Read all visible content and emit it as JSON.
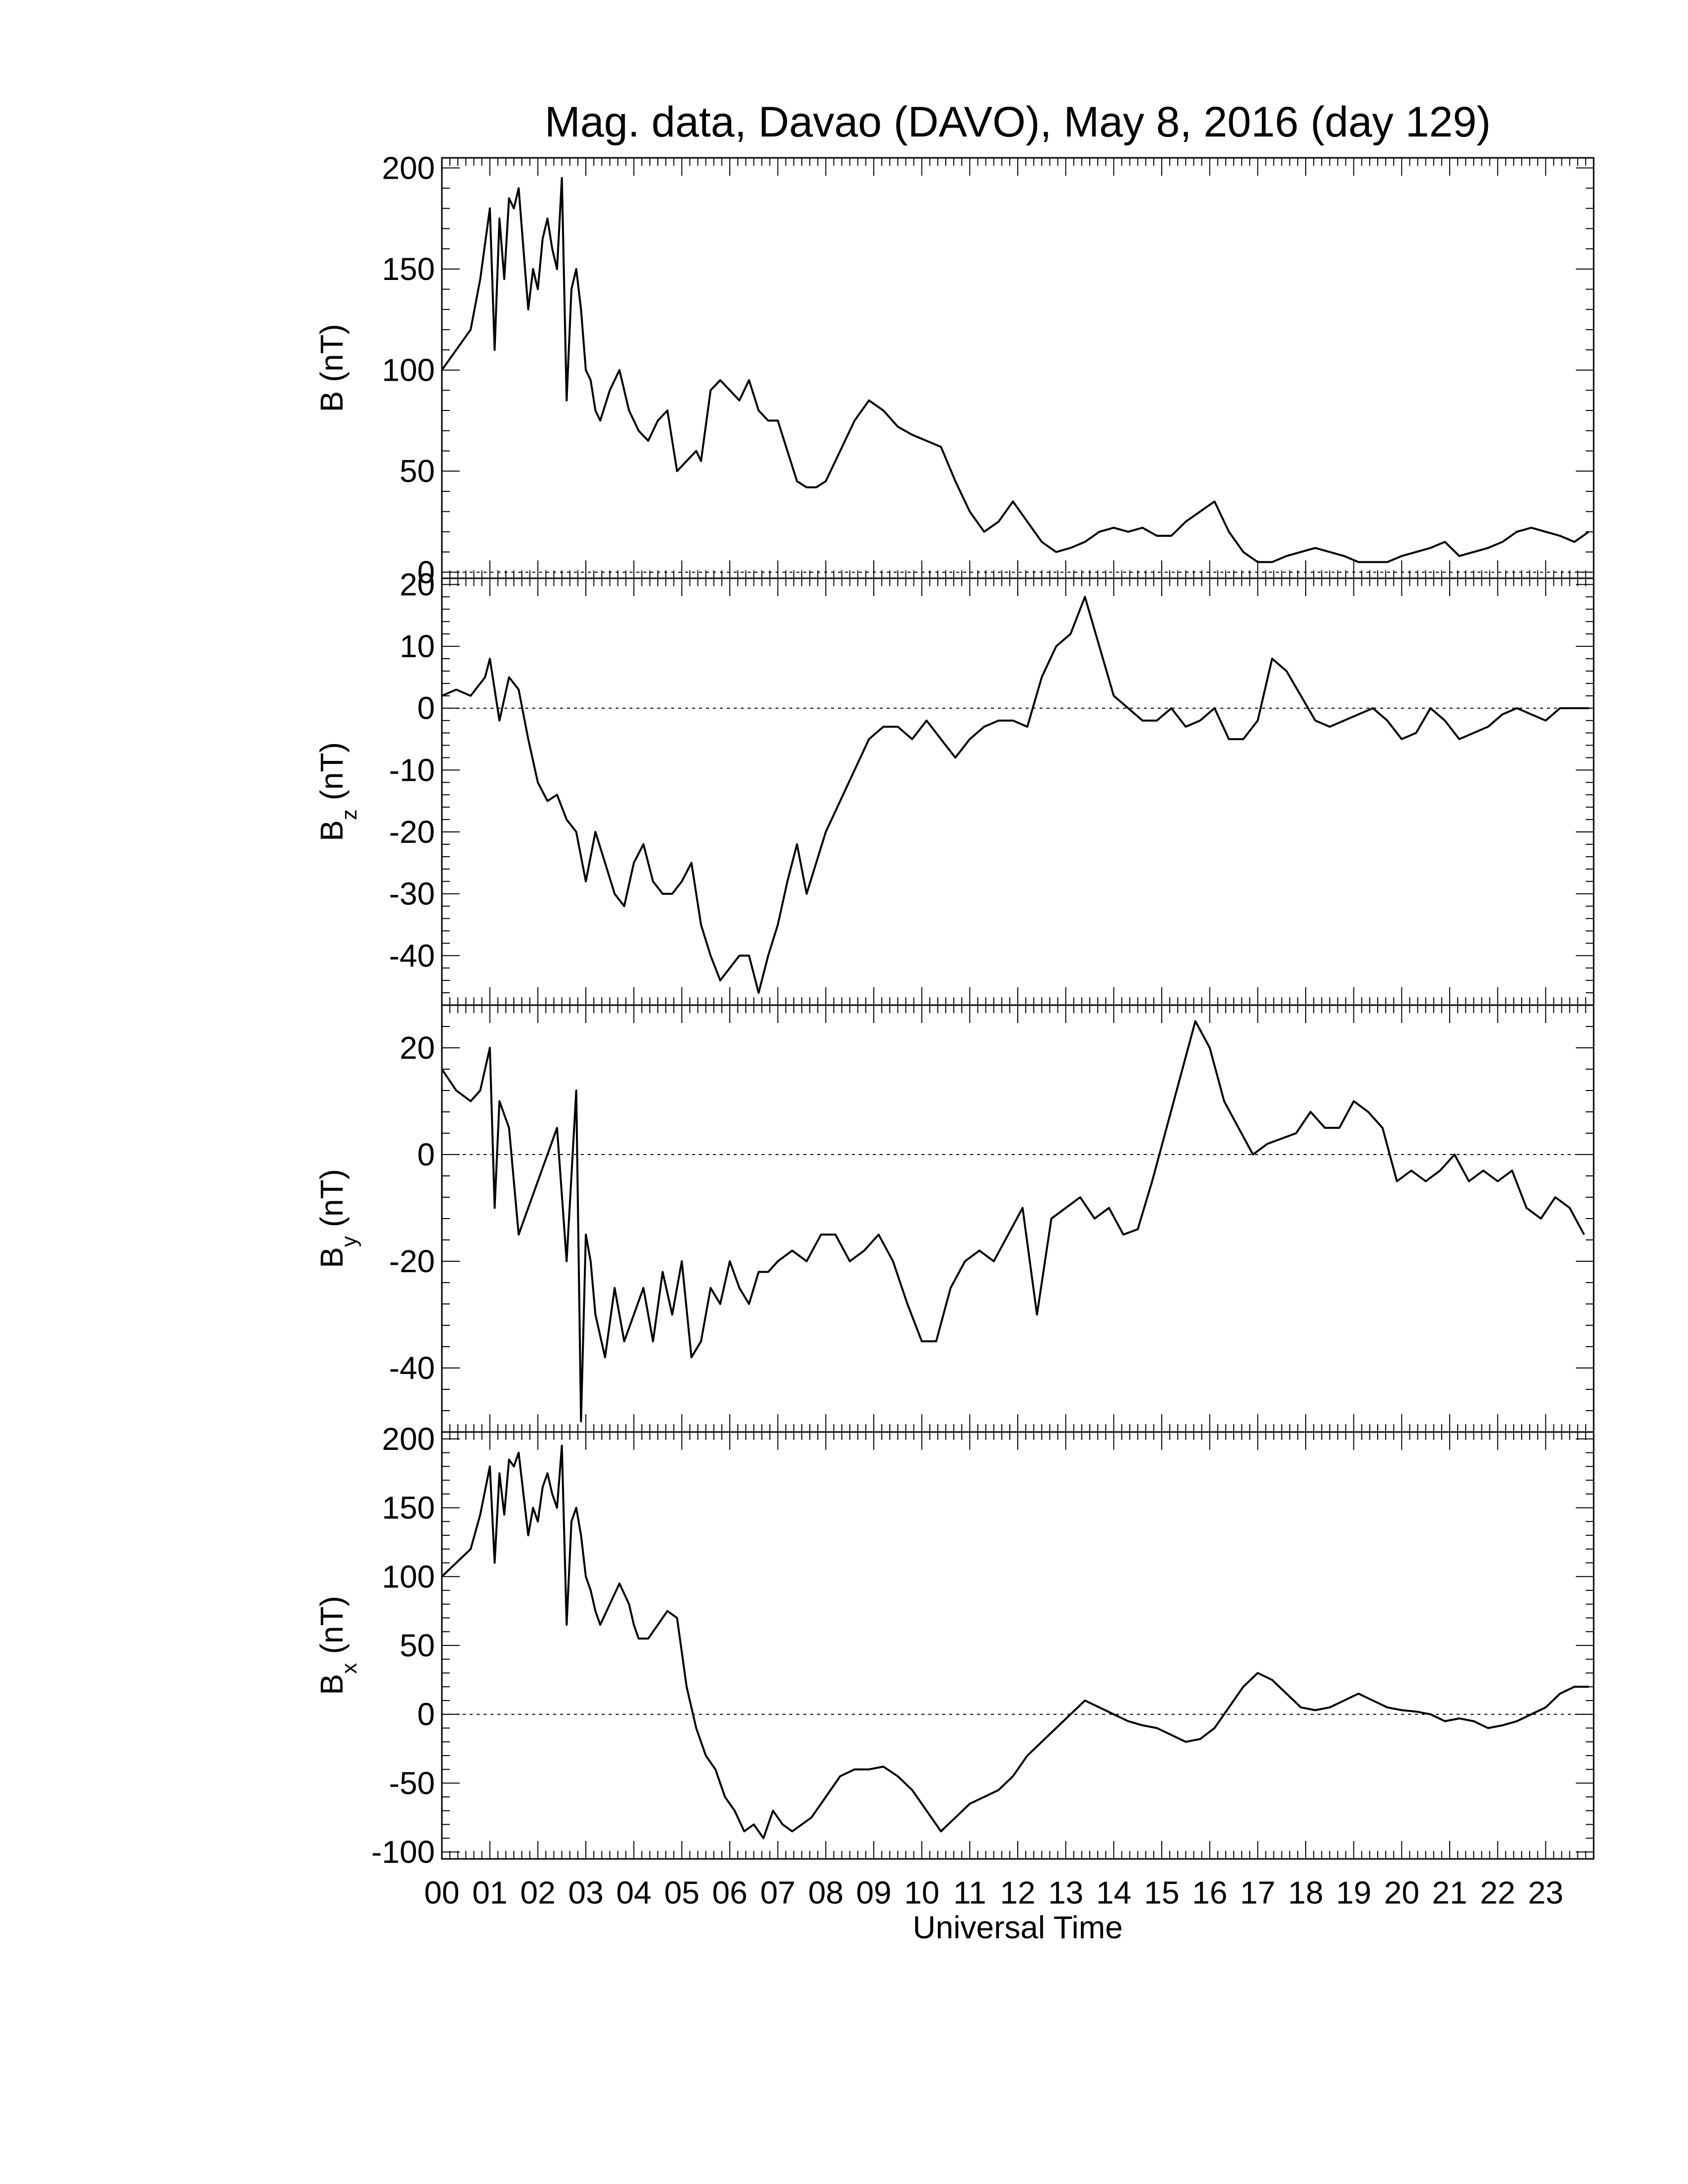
{
  "title": "Mag. data, Davao (DAVO), May 8, 2016 (day 129)",
  "xlabel": "Universal Time",
  "x_ticks": [
    "00",
    "01",
    "02",
    "03",
    "04",
    "05",
    "06",
    "07",
    "08",
    "09",
    "10",
    "11",
    "12",
    "13",
    "14",
    "15",
    "16",
    "17",
    "18",
    "19",
    "20",
    "21",
    "22",
    "23"
  ],
  "chart_data": [
    {
      "type": "line",
      "ylabel_main": "B",
      "ylabel_sub": "",
      "ylabel_unit": "(nT)",
      "ylim": [
        -3,
        205
      ],
      "yticks": [
        0,
        50,
        100,
        150,
        200
      ],
      "xlim": [
        0,
        24
      ],
      "zero_line": true,
      "x": [
        0,
        0.3,
        0.6,
        0.8,
        1.0,
        1.1,
        1.2,
        1.3,
        1.4,
        1.5,
        1.6,
        1.7,
        1.8,
        1.9,
        2.0,
        2.1,
        2.2,
        2.3,
        2.4,
        2.5,
        2.6,
        2.7,
        2.8,
        2.9,
        3.0,
        3.1,
        3.2,
        3.3,
        3.5,
        3.7,
        3.9,
        4.0,
        4.1,
        4.3,
        4.5,
        4.7,
        4.9,
        5.1,
        5.3,
        5.4,
        5.6,
        5.8,
        6.0,
        6.2,
        6.4,
        6.6,
        6.8,
        7.0,
        7.2,
        7.4,
        7.6,
        7.8,
        8.0,
        8.3,
        8.6,
        8.9,
        9.2,
        9.5,
        9.8,
        10.1,
        10.4,
        10.7,
        11.0,
        11.3,
        11.6,
        11.9,
        12.2,
        12.5,
        12.8,
        13.1,
        13.4,
        13.7,
        14.0,
        14.3,
        14.6,
        14.9,
        15.2,
        15.5,
        15.8,
        16.1,
        16.4,
        16.7,
        17.0,
        17.3,
        17.6,
        17.9,
        18.2,
        18.5,
        18.8,
        19.1,
        19.4,
        19.7,
        20.0,
        20.3,
        20.6,
        20.9,
        21.2,
        21.5,
        21.8,
        22.1,
        22.4,
        22.7,
        23.0,
        23.3,
        23.6,
        23.9
      ],
      "y": [
        100,
        110,
        120,
        145,
        180,
        110,
        175,
        145,
        185,
        180,
        190,
        160,
        130,
        150,
        140,
        165,
        175,
        160,
        150,
        195,
        85,
        140,
        150,
        130,
        100,
        95,
        80,
        75,
        90,
        100,
        80,
        75,
        70,
        65,
        75,
        80,
        50,
        55,
        60,
        55,
        90,
        95,
        90,
        85,
        95,
        80,
        75,
        75,
        60,
        45,
        42,
        42,
        45,
        60,
        75,
        85,
        80,
        72,
        68,
        65,
        62,
        45,
        30,
        20,
        25,
        35,
        25,
        15,
        10,
        12,
        15,
        20,
        22,
        20,
        22,
        18,
        18,
        25,
        30,
        35,
        20,
        10,
        5,
        5,
        8,
        10,
        12,
        10,
        8,
        5,
        5,
        5,
        8,
        10,
        12,
        15,
        8,
        10,
        12,
        15,
        20,
        22,
        20,
        18,
        15,
        20
      ]
    },
    {
      "type": "line",
      "ylabel_main": "B",
      "ylabel_sub": "z",
      "ylabel_unit": "(nT)",
      "ylim": [
        -48,
        21
      ],
      "yticks": [
        -40,
        -30,
        -20,
        -10,
        0,
        10,
        20
      ],
      "xlim": [
        0,
        24
      ],
      "zero_line": true,
      "x": [
        0,
        0.3,
        0.6,
        0.9,
        1.0,
        1.2,
        1.4,
        1.6,
        1.8,
        2.0,
        2.2,
        2.4,
        2.6,
        2.8,
        3.0,
        3.2,
        3.4,
        3.6,
        3.8,
        4.0,
        4.2,
        4.4,
        4.6,
        4.8,
        5.0,
        5.2,
        5.4,
        5.6,
        5.8,
        6.0,
        6.2,
        6.4,
        6.6,
        6.8,
        7.0,
        7.2,
        7.4,
        7.6,
        7.8,
        8.0,
        8.3,
        8.6,
        8.9,
        9.2,
        9.5,
        9.8,
        10.1,
        10.4,
        10.7,
        11.0,
        11.3,
        11.6,
        11.9,
        12.2,
        12.5,
        12.8,
        13.1,
        13.4,
        13.7,
        14.0,
        14.3,
        14.6,
        14.9,
        15.2,
        15.5,
        15.8,
        16.1,
        16.4,
        16.7,
        17.0,
        17.3,
        17.6,
        17.9,
        18.2,
        18.5,
        18.8,
        19.1,
        19.4,
        19.7,
        20.0,
        20.3,
        20.6,
        20.9,
        21.2,
        21.5,
        21.8,
        22.1,
        22.4,
        22.7,
        23.0,
        23.3,
        23.6,
        23.9
      ],
      "y": [
        2,
        3,
        2,
        5,
        8,
        -2,
        5,
        3,
        -5,
        -12,
        -15,
        -14,
        -18,
        -20,
        -28,
        -20,
        -25,
        -30,
        -32,
        -25,
        -22,
        -28,
        -30,
        -30,
        -28,
        -25,
        -35,
        -40,
        -44,
        -42,
        -40,
        -40,
        -46,
        -40,
        -35,
        -28,
        -22,
        -30,
        -25,
        -20,
        -15,
        -10,
        -5,
        -3,
        -3,
        -5,
        -2,
        -5,
        -8,
        -5,
        -3,
        -2,
        -2,
        -3,
        5,
        10,
        12,
        18,
        10,
        2,
        0,
        -2,
        -2,
        0,
        -3,
        -2,
        0,
        -5,
        -5,
        -2,
        8,
        6,
        2,
        -2,
        -3,
        -2,
        -1,
        0,
        -2,
        -5,
        -4,
        0,
        -2,
        -5,
        -4,
        -3,
        -1,
        0,
        -1,
        -2,
        0,
        0,
        0
      ]
    },
    {
      "type": "line",
      "ylabel_main": "B",
      "ylabel_sub": "y",
      "ylabel_unit": "(nT)",
      "ylim": [
        -52,
        28
      ],
      "yticks": [
        -40,
        -20,
        0,
        20
      ],
      "xlim": [
        0,
        24
      ],
      "zero_line": true,
      "x": [
        0,
        0.3,
        0.6,
        0.8,
        1.0,
        1.1,
        1.2,
        1.4,
        1.6,
        1.8,
        2.0,
        2.2,
        2.4,
        2.6,
        2.8,
        2.9,
        3.0,
        3.1,
        3.2,
        3.4,
        3.6,
        3.8,
        4.0,
        4.2,
        4.4,
        4.6,
        4.8,
        5.0,
        5.2,
        5.4,
        5.6,
        5.8,
        6.0,
        6.2,
        6.4,
        6.6,
        6.8,
        7.0,
        7.3,
        7.6,
        7.9,
        8.2,
        8.5,
        8.8,
        9.1,
        9.4,
        9.7,
        10.0,
        10.3,
        10.6,
        10.9,
        11.2,
        11.5,
        11.8,
        12.1,
        12.4,
        12.7,
        13.0,
        13.3,
        13.6,
        13.9,
        14.2,
        14.5,
        14.8,
        15.1,
        15.4,
        15.7,
        16.0,
        16.3,
        16.6,
        16.9,
        17.2,
        17.5,
        17.8,
        18.1,
        18.4,
        18.7,
        19.0,
        19.3,
        19.6,
        19.9,
        20.2,
        20.5,
        20.8,
        21.1,
        21.4,
        21.7,
        22.0,
        22.3,
        22.6,
        22.9,
        23.2,
        23.5,
        23.8
      ],
      "y": [
        16,
        12,
        10,
        12,
        20,
        -10,
        10,
        5,
        -15,
        -10,
        -5,
        0,
        5,
        -20,
        12,
        -50,
        -15,
        -20,
        -30,
        -38,
        -25,
        -35,
        -30,
        -25,
        -35,
        -22,
        -30,
        -20,
        -38,
        -35,
        -25,
        -28,
        -20,
        -25,
        -28,
        -22,
        -22,
        -20,
        -18,
        -20,
        -15,
        -15,
        -20,
        -18,
        -15,
        -20,
        -28,
        -35,
        -35,
        -25,
        -20,
        -18,
        -20,
        -15,
        -10,
        -30,
        -12,
        -10,
        -8,
        -12,
        -10,
        -15,
        -14,
        -5,
        5,
        15,
        25,
        20,
        10,
        5,
        0,
        2,
        3,
        4,
        8,
        5,
        5,
        10,
        8,
        5,
        -5,
        -3,
        -5,
        -3,
        0,
        -5,
        -3,
        -5,
        -3,
        -10,
        -12,
        -8,
        -10,
        -15
      ]
    },
    {
      "type": "line",
      "ylabel_main": "B",
      "ylabel_sub": "x",
      "ylabel_unit": "(nT)",
      "ylim": [
        -105,
        205
      ],
      "yticks": [
        -100,
        -50,
        0,
        50,
        100,
        150,
        200
      ],
      "xlim": [
        0,
        24
      ],
      "zero_line": true,
      "x": [
        0,
        0.3,
        0.6,
        0.8,
        1.0,
        1.1,
        1.2,
        1.3,
        1.4,
        1.5,
        1.6,
        1.7,
        1.8,
        1.9,
        2.0,
        2.1,
        2.2,
        2.3,
        2.4,
        2.5,
        2.6,
        2.7,
        2.8,
        2.9,
        3.0,
        3.1,
        3.2,
        3.3,
        3.5,
        3.7,
        3.9,
        4.0,
        4.1,
        4.3,
        4.5,
        4.7,
        4.9,
        5.1,
        5.3,
        5.5,
        5.7,
        5.9,
        6.1,
        6.3,
        6.5,
        6.7,
        6.9,
        7.1,
        7.3,
        7.5,
        7.7,
        8.0,
        8.3,
        8.6,
        8.9,
        9.2,
        9.5,
        9.8,
        10.1,
        10.4,
        10.7,
        11.0,
        11.3,
        11.6,
        11.9,
        12.2,
        12.5,
        12.8,
        13.1,
        13.4,
        13.7,
        14.0,
        14.3,
        14.6,
        14.9,
        15.2,
        15.5,
        15.8,
        16.1,
        16.4,
        16.7,
        17.0,
        17.3,
        17.6,
        17.9,
        18.2,
        18.5,
        18.8,
        19.1,
        19.4,
        19.7,
        20.0,
        20.3,
        20.6,
        20.9,
        21.2,
        21.5,
        21.8,
        22.1,
        22.4,
        22.7,
        23.0,
        23.3,
        23.6,
        23.9
      ],
      "y": [
        100,
        110,
        120,
        145,
        180,
        110,
        175,
        145,
        185,
        180,
        190,
        160,
        130,
        150,
        140,
        165,
        175,
        160,
        150,
        195,
        65,
        140,
        150,
        130,
        100,
        90,
        75,
        65,
        80,
        95,
        80,
        65,
        55,
        55,
        65,
        75,
        70,
        20,
        -10,
        -30,
        -40,
        -60,
        -70,
        -85,
        -80,
        -90,
        -70,
        -80,
        -85,
        -80,
        -75,
        -60,
        -45,
        -40,
        -40,
        -38,
        -45,
        -55,
        -70,
        -85,
        -75,
        -65,
        -60,
        -55,
        -45,
        -30,
        -20,
        -10,
        0,
        10,
        5,
        0,
        -5,
        -8,
        -10,
        -15,
        -20,
        -18,
        -10,
        5,
        20,
        30,
        25,
        15,
        5,
        3,
        5,
        10,
        15,
        10,
        5,
        3,
        2,
        0,
        -5,
        -3,
        -5,
        -10,
        -8,
        -5,
        0,
        5,
        15,
        20,
        20
      ]
    }
  ]
}
